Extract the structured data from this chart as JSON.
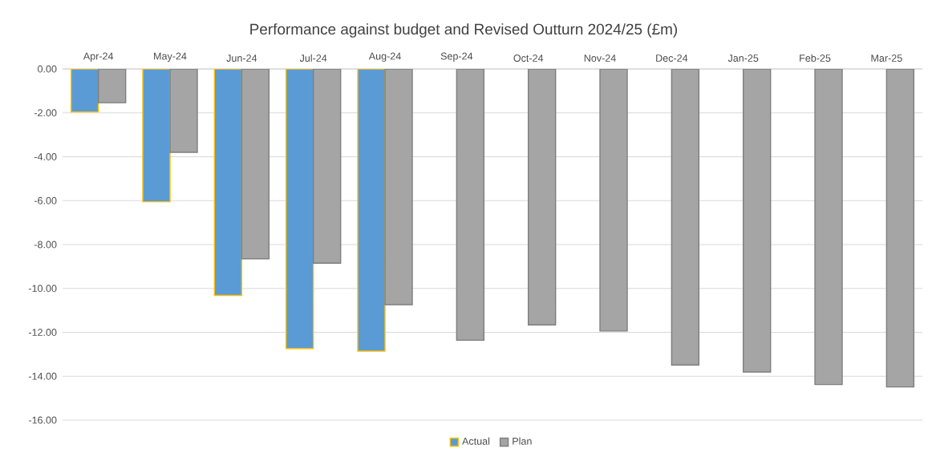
{
  "chart_data": {
    "type": "bar",
    "title": "Performance against budget and Revised Outturn 2024/25 (£m)",
    "categories": [
      "Apr-24",
      "May-24",
      "Jun-24",
      "Jul-24",
      "Aug-24",
      "Sep-24",
      "Oct-24",
      "Nov-24",
      "Dec-24",
      "Jan-25",
      "Feb-25",
      "Mar-25"
    ],
    "series": [
      {
        "name": "Actual",
        "color": "#5b9bd5",
        "values": [
          -1.96,
          -6.05,
          -10.32,
          -12.74,
          -12.86,
          null,
          null,
          null,
          null,
          null,
          null,
          null
        ]
      },
      {
        "name": "Plan",
        "color": "#a5a5a5",
        "values": [
          -1.54,
          -3.8,
          -8.65,
          -8.85,
          -10.74,
          -12.36,
          -11.66,
          -11.94,
          -13.49,
          -13.81,
          -14.38,
          -14.49
        ]
      }
    ],
    "ylim": [
      -16,
      0
    ],
    "yticks": [
      {
        "value": -16,
        "label": "-16.00"
      },
      {
        "value": -14,
        "label": "-14.00"
      },
      {
        "value": -12,
        "label": "-12.00"
      },
      {
        "value": -10,
        "label": "-10.00"
      },
      {
        "value": -8,
        "label": "-8.00"
      },
      {
        "value": -6,
        "label": "-6.00"
      },
      {
        "value": -4,
        "label": "-4.00"
      },
      {
        "value": -2,
        "label": "-2.00"
      },
      {
        "value": 0,
        "label": "0.00"
      }
    ],
    "grid": "y",
    "legend": "bottom"
  }
}
